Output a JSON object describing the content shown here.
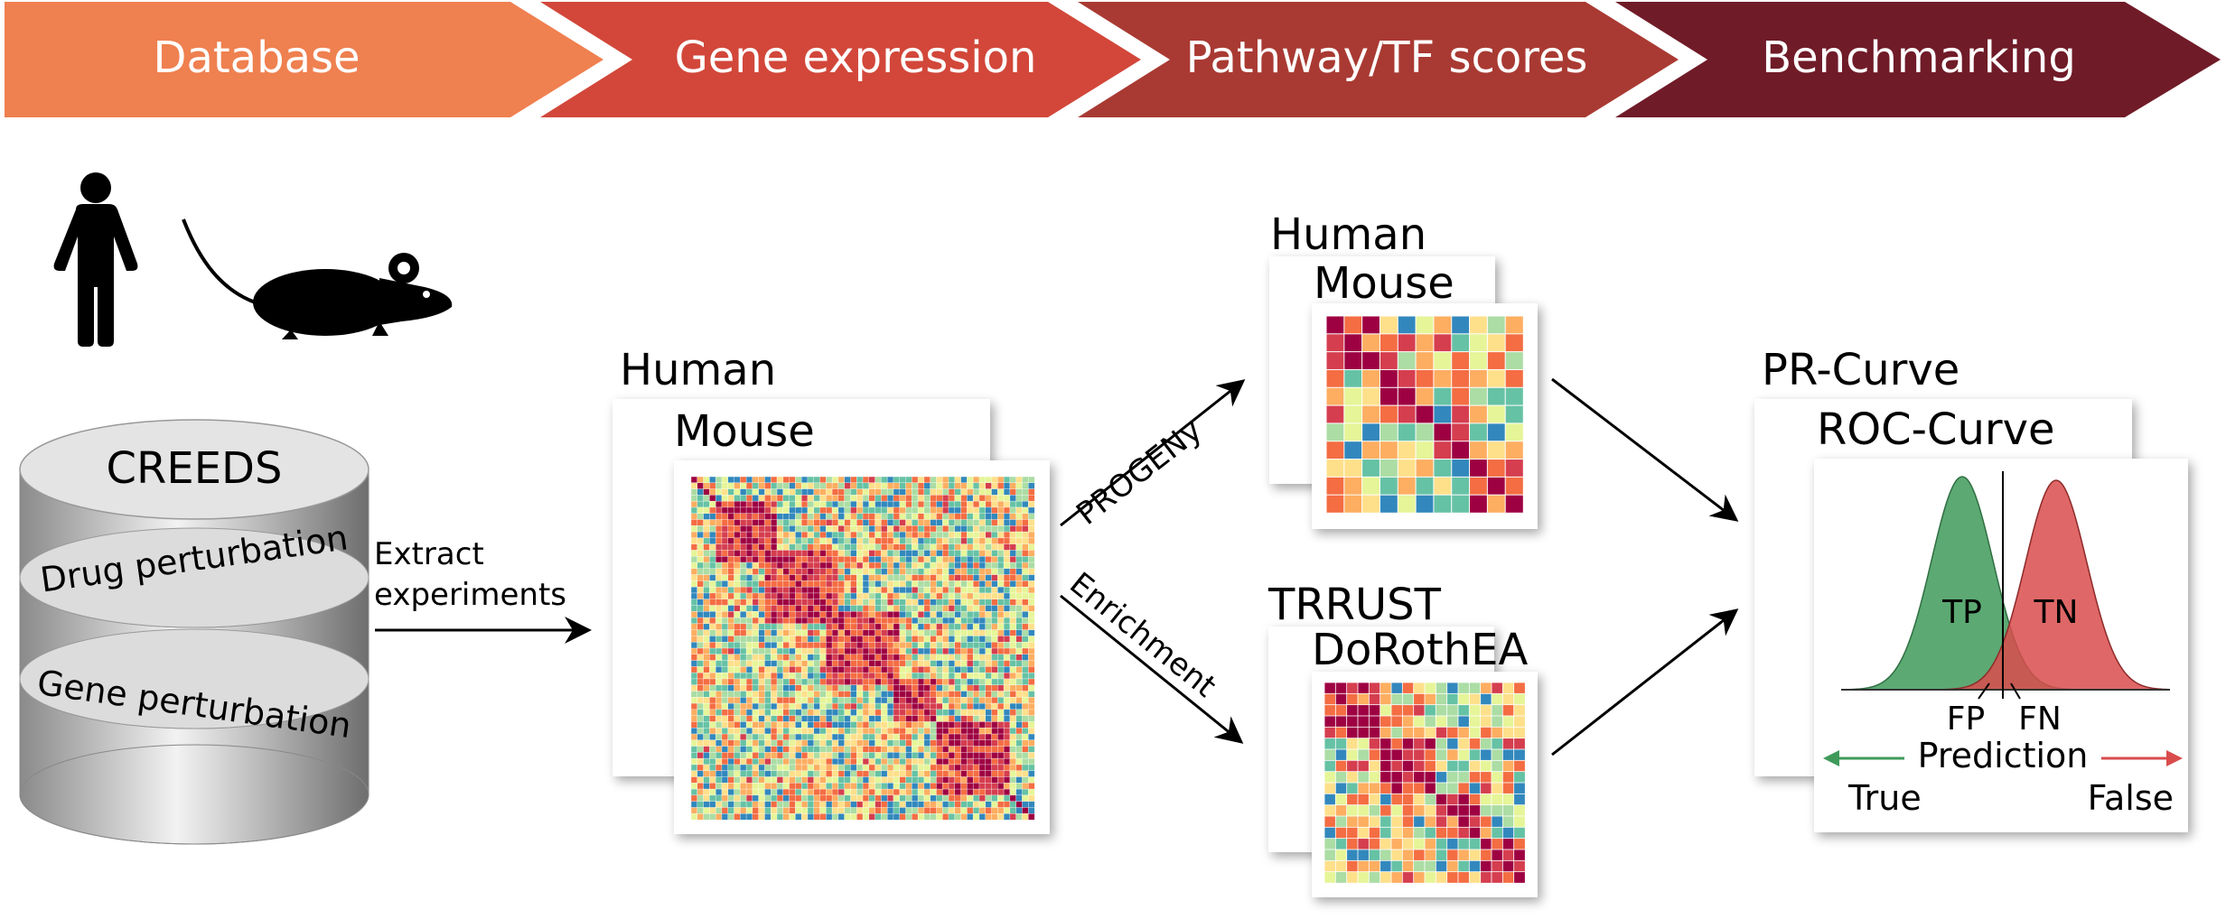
{
  "pipeline": {
    "steps": [
      {
        "label": "Database",
        "color": "#ef8050"
      },
      {
        "label": "Gene expression",
        "color": "#d2473a"
      },
      {
        "label": "Pathway/TF scores",
        "color": "#a93a33"
      },
      {
        "label": "Benchmarking",
        "color": "#701b28"
      }
    ]
  },
  "species_icons": [
    "person-icon",
    "mouse-icon"
  ],
  "database": {
    "name": "CREEDS",
    "layers": [
      "Drug perturbation",
      "Gene perturbation"
    ]
  },
  "extract_label": [
    "Extract",
    "experiments"
  ],
  "expression": {
    "back_label": "Human",
    "front_label": "Mouse"
  },
  "methods": {
    "progeny": "PROGENy",
    "enrichment": "Enrichment"
  },
  "pathway_panel": {
    "back_label": "Human",
    "front_label": "Mouse"
  },
  "tf_panel": {
    "back_label": "TRRUST",
    "front_label": "DoRothEA"
  },
  "benchmark": {
    "back_label": "PR-Curve",
    "front_label": "ROC-Curve",
    "tp": "TP",
    "tn": "TN",
    "fp": "FP",
    "fn": "FN",
    "prediction": "Prediction",
    "true_label": "True",
    "false_label": "False",
    "true_color": "#3f9a5a",
    "false_color": "#d94c4c"
  },
  "heatmap_palette": [
    "#9e0142",
    "#d53e4f",
    "#f46d43",
    "#fdae61",
    "#fee08b",
    "#e6f598",
    "#abdda4",
    "#66c2a5",
    "#3288bd"
  ]
}
